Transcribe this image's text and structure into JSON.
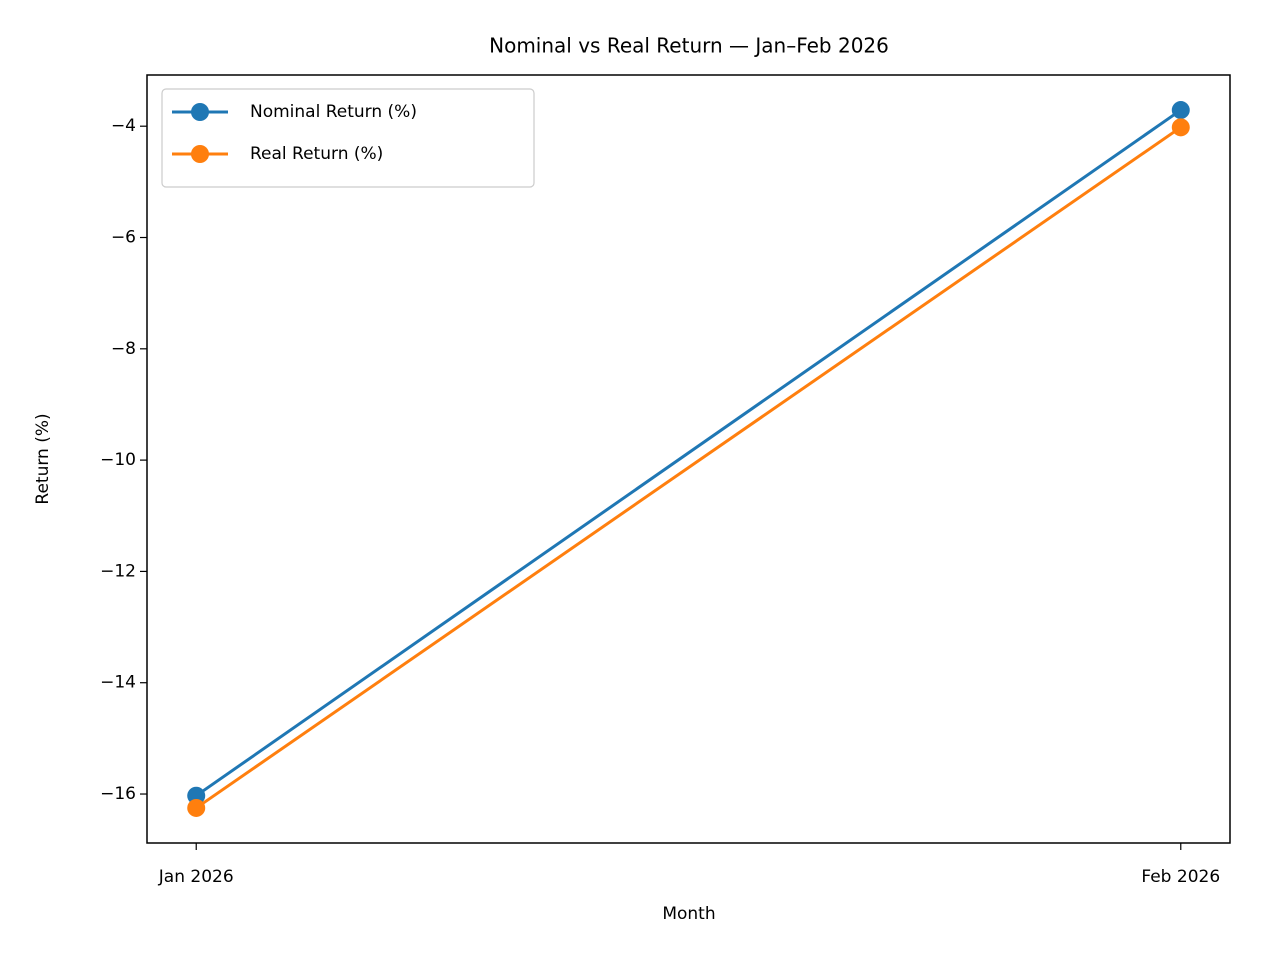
{
  "chart_data": {
    "type": "line",
    "title": "Nominal vs Real Return — Jan–Feb 2026",
    "x_label": "Month",
    "y_label": "Return (%)",
    "categories": [
      "Jan 2026",
      "Feb 2026"
    ],
    "series": [
      {
        "name": "Nominal Return (%)",
        "color": "#1f77b4",
        "values": [
          -16.03,
          -3.71
        ]
      },
      {
        "name": "Real Return (%)",
        "color": "#ff7f0e",
        "values": [
          -16.25,
          -4.02
        ]
      }
    ],
    "ylim": [
      -16.88,
      -3.08
    ],
    "yticks": [
      {
        "value": -16,
        "label": "−16"
      },
      {
        "value": -14,
        "label": "−14"
      },
      {
        "value": -12,
        "label": "−12"
      },
      {
        "value": -10,
        "label": "−10"
      },
      {
        "value": -8,
        "label": "−8"
      },
      {
        "value": -6,
        "label": "−6"
      },
      {
        "value": -4,
        "label": "−4"
      }
    ],
    "grid": false,
    "legend": "upper-left"
  }
}
